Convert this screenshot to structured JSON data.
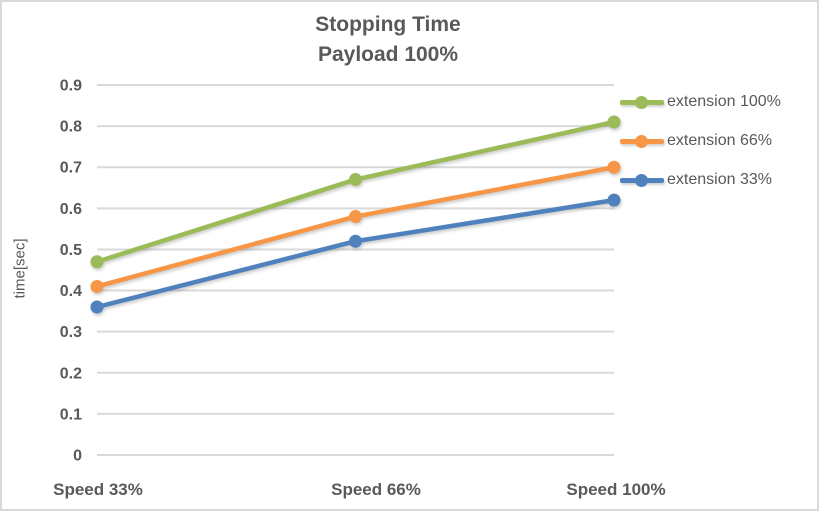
{
  "chart_data": {
    "type": "line",
    "title": "Stopping Time",
    "subtitle": "Payload 100%",
    "ylabel": "time[sec]",
    "xlabel": "",
    "categories": [
      "Speed 33%",
      "Speed 66%",
      "Speed 100%"
    ],
    "series": [
      {
        "name": "extension 100%",
        "color": "#9BBB59",
        "values": [
          0.47,
          0.67,
          0.81
        ]
      },
      {
        "name": "extension 66%",
        "color": "#F79646",
        "values": [
          0.41,
          0.58,
          0.7
        ]
      },
      {
        "name": "extension 33%",
        "color": "#4F81BD",
        "values": [
          0.36,
          0.52,
          0.62
        ]
      }
    ],
    "ylim": [
      0,
      0.9
    ],
    "ytick_step": 0.1,
    "ytick_labels": [
      "0",
      "0.1",
      "0.2",
      "0.3",
      "0.4",
      "0.5",
      "0.6",
      "0.7",
      "0.8",
      "0.9"
    ],
    "grid": true,
    "legend_position": "right",
    "marker": "circle",
    "colors": {
      "text": "#595959",
      "gridline": "#D9D9D9",
      "border": "#D9D9D9",
      "background": "#FFFFFF"
    }
  }
}
